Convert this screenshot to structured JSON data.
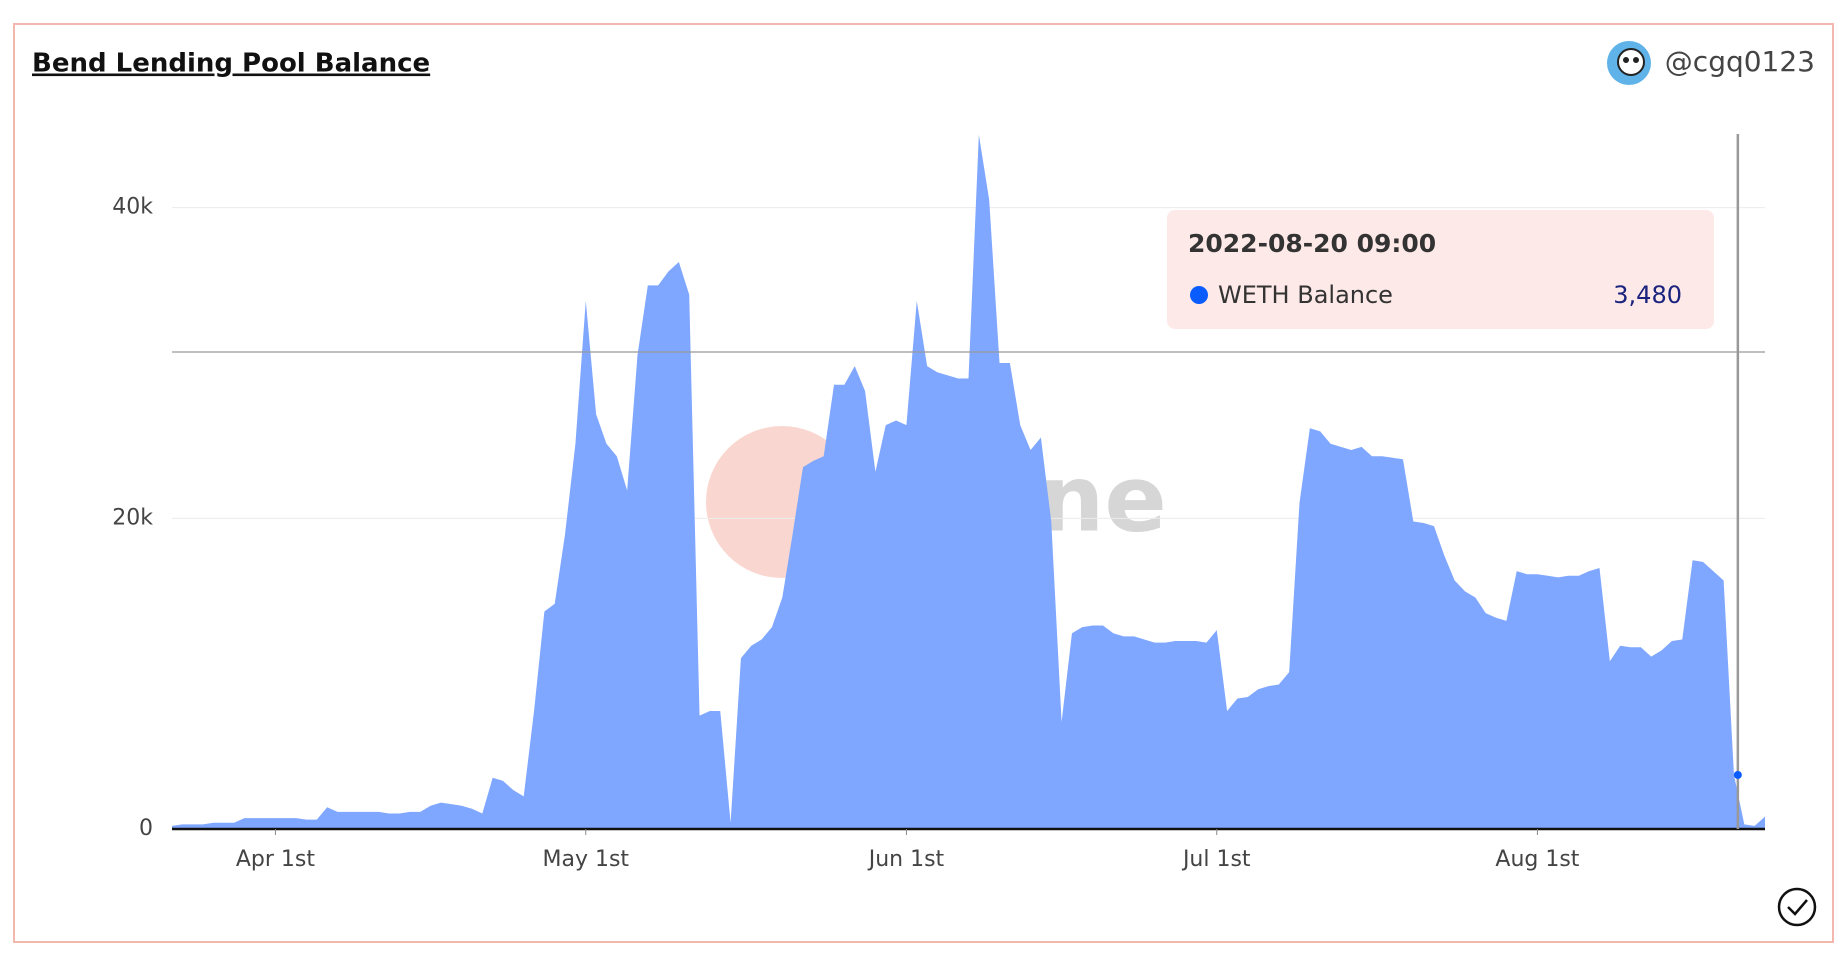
{
  "header": {
    "title": "Bend Lending Pool Balance",
    "author": "@cgq0123"
  },
  "chart_data": {
    "type": "area",
    "x": [
      "2022-03-22",
      "2022-03-23",
      "2022-03-24",
      "2022-03-25",
      "2022-03-26",
      "2022-03-27",
      "2022-03-28",
      "2022-03-29",
      "2022-03-30",
      "2022-03-31",
      "2022-04-01",
      "2022-04-02",
      "2022-04-03",
      "2022-04-04",
      "2022-04-05",
      "2022-04-06",
      "2022-04-07",
      "2022-04-08",
      "2022-04-09",
      "2022-04-10",
      "2022-04-11",
      "2022-04-12",
      "2022-04-13",
      "2022-04-14",
      "2022-04-15",
      "2022-04-16",
      "2022-04-17",
      "2022-04-18",
      "2022-04-19",
      "2022-04-20",
      "2022-04-21",
      "2022-04-22",
      "2022-04-23",
      "2022-04-24",
      "2022-04-25",
      "2022-04-26",
      "2022-04-27",
      "2022-04-28",
      "2022-04-29",
      "2022-04-30",
      "2022-05-01",
      "2022-05-02",
      "2022-05-03",
      "2022-05-04",
      "2022-05-05",
      "2022-05-06",
      "2022-05-07",
      "2022-05-08",
      "2022-05-09",
      "2022-05-10",
      "2022-05-11",
      "2022-05-12",
      "2022-05-13",
      "2022-05-14",
      "2022-05-15",
      "2022-05-16",
      "2022-05-17",
      "2022-05-18",
      "2022-05-19",
      "2022-05-20",
      "2022-05-21",
      "2022-05-22",
      "2022-05-23",
      "2022-05-24",
      "2022-05-25",
      "2022-05-26",
      "2022-05-27",
      "2022-05-28",
      "2022-05-29",
      "2022-05-30",
      "2022-05-31",
      "2022-06-01",
      "2022-06-02",
      "2022-06-03",
      "2022-06-04",
      "2022-06-05",
      "2022-06-06",
      "2022-06-07",
      "2022-06-08",
      "2022-06-09",
      "2022-06-10",
      "2022-06-11",
      "2022-06-12",
      "2022-06-13",
      "2022-06-14",
      "2022-06-15",
      "2022-06-16",
      "2022-06-17",
      "2022-06-18",
      "2022-06-19",
      "2022-06-20",
      "2022-06-21",
      "2022-06-22",
      "2022-06-23",
      "2022-06-24",
      "2022-06-25",
      "2022-06-26",
      "2022-06-27",
      "2022-06-28",
      "2022-06-29",
      "2022-06-30",
      "2022-07-01",
      "2022-07-02",
      "2022-07-03",
      "2022-07-04",
      "2022-07-05",
      "2022-07-06",
      "2022-07-07",
      "2022-07-08",
      "2022-07-09",
      "2022-07-10",
      "2022-07-11",
      "2022-07-12",
      "2022-07-13",
      "2022-07-14",
      "2022-07-15",
      "2022-07-16",
      "2022-07-17",
      "2022-07-18",
      "2022-07-19",
      "2022-07-20",
      "2022-07-21",
      "2022-07-22",
      "2022-07-23",
      "2022-07-24",
      "2022-07-25",
      "2022-07-26",
      "2022-07-27",
      "2022-07-28",
      "2022-07-29",
      "2022-07-30",
      "2022-07-31",
      "2022-08-01",
      "2022-08-02",
      "2022-08-03",
      "2022-08-04",
      "2022-08-05",
      "2022-08-06",
      "2022-08-07",
      "2022-08-08",
      "2022-08-09",
      "2022-08-10",
      "2022-08-11",
      "2022-08-12",
      "2022-08-13",
      "2022-08-14",
      "2022-08-15",
      "2022-08-16",
      "2022-08-17",
      "2022-08-18",
      "2022-08-19",
      "2022-08-20",
      "2022-08-21",
      "2022-08-22",
      "2022-08-23"
    ],
    "series": [
      {
        "name": "WETH Balance",
        "color": "#7fa7ff",
        "values": [
          200,
          300,
          300,
          300,
          400,
          400,
          400,
          700,
          700,
          700,
          700,
          700,
          700,
          600,
          600,
          1400,
          1100,
          1100,
          1100,
          1100,
          1100,
          1000,
          1000,
          1100,
          1100,
          1500,
          1700,
          1600,
          1500,
          1300,
          1000,
          3300,
          3100,
          2500,
          2100,
          7600,
          14000,
          14500,
          19000,
          24800,
          34000,
          26700,
          24800,
          24000,
          21800,
          30500,
          35000,
          35000,
          35900,
          36500,
          34400,
          7300,
          7600,
          7600,
          400,
          11000,
          11800,
          12200,
          13000,
          14900,
          19000,
          23300,
          23700,
          24000,
          28600,
          28600,
          29800,
          28200,
          23000,
          26000,
          26300,
          26000,
          34000,
          29800,
          29400,
          29200,
          29000,
          29000,
          44700,
          40500,
          30000,
          30000,
          26000,
          24400,
          25200,
          19800,
          6900,
          12600,
          13000,
          13100,
          13100,
          12600,
          12400,
          12400,
          12200,
          12000,
          12000,
          12100,
          12100,
          12100,
          12000,
          12800,
          7600,
          8400,
          8500,
          9000,
          9200,
          9300,
          10100,
          21000,
          25800,
          25600,
          24800,
          24600,
          24400,
          24600,
          24000,
          24000,
          23900,
          23800,
          19800,
          19700,
          19500,
          17600,
          16000,
          15300,
          14900,
          13900,
          13600,
          13400,
          16600,
          16400,
          16400,
          16300,
          16200,
          16300,
          16300,
          16600,
          16800,
          10800,
          11800,
          11700,
          11700,
          11100,
          11500,
          12100,
          12200,
          17300,
          17200,
          16600,
          16000,
          3480,
          300,
          200,
          800
        ]
      }
    ],
    "xlim": [
      "2022-03-22",
      "2022-08-23"
    ],
    "xticks": [
      {
        "value": "2022-04-01",
        "label": "Apr 1st"
      },
      {
        "value": "2022-05-01",
        "label": "May 1st"
      },
      {
        "value": "2022-06-01",
        "label": "Jun 1st"
      },
      {
        "value": "2022-07-01",
        "label": "Jul 1st"
      },
      {
        "value": "2022-08-01",
        "label": "Aug 1st"
      }
    ],
    "ylim": [
      0,
      45000
    ],
    "yticks": [
      0,
      {
        "value": 20000,
        "label": "20k"
      },
      {
        "value": 40000,
        "label": "40k"
      }
    ],
    "grid": true,
    "watermark": "Dune",
    "tooltip": {
      "x": "2022-08-20 09:00",
      "value": 3480,
      "value_label": "3,480"
    }
  }
}
